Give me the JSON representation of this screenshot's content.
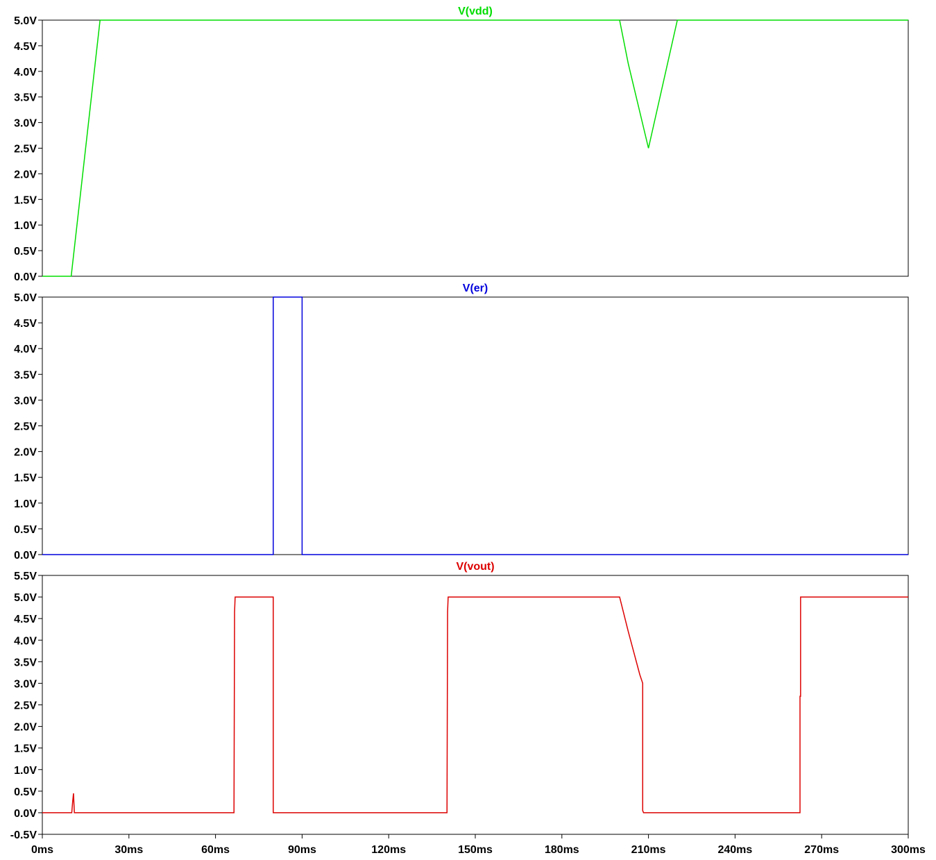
{
  "chart_data": [
    {
      "type": "line",
      "title": "V(vdd)",
      "color": "#00dd00",
      "xlabel": "",
      "ylabel": "",
      "xlim": [
        0,
        300
      ],
      "ylim": [
        0,
        5
      ],
      "x_unit": "ms",
      "y_unit": "V",
      "y_ticks": [
        "0.0V",
        "0.5V",
        "1.0V",
        "1.5V",
        "2.0V",
        "2.5V",
        "3.0V",
        "3.5V",
        "4.0V",
        "4.5V",
        "5.0V"
      ],
      "y_tick_values": [
        0,
        0.5,
        1,
        1.5,
        2,
        2.5,
        3,
        3.5,
        4,
        4.5,
        5
      ],
      "grid": false,
      "series": [
        {
          "x": [
            0,
            10,
            20,
            200,
            203,
            210,
            220,
            300
          ],
          "y": [
            0,
            0,
            5,
            5,
            4.15,
            2.5,
            5,
            5
          ]
        }
      ]
    },
    {
      "type": "line",
      "title": "V(er)",
      "color": "#0000dd",
      "xlabel": "",
      "ylabel": "",
      "xlim": [
        0,
        300
      ],
      "ylim": [
        0,
        5
      ],
      "x_unit": "ms",
      "y_unit": "V",
      "y_ticks": [
        "0.0V",
        "0.5V",
        "1.0V",
        "1.5V",
        "2.0V",
        "2.5V",
        "3.0V",
        "3.5V",
        "4.0V",
        "4.5V",
        "5.0V"
      ],
      "y_tick_values": [
        0,
        0.5,
        1,
        1.5,
        2,
        2.5,
        3,
        3.5,
        4,
        4.5,
        5
      ],
      "grid": false,
      "series": [
        {
          "x": [
            0,
            80,
            80,
            90,
            90,
            300
          ],
          "y": [
            0,
            0,
            5,
            5,
            0,
            0
          ]
        }
      ]
    },
    {
      "type": "line",
      "title": "V(vout)",
      "color": "#dd0000",
      "xlabel": "",
      "ylabel": "",
      "xlim": [
        0,
        300
      ],
      "ylim": [
        -0.5,
        5.5
      ],
      "x_unit": "ms",
      "y_unit": "V",
      "y_ticks": [
        "-0.5V",
        "0.0V",
        "0.5V",
        "1.0V",
        "1.5V",
        "2.0V",
        "2.5V",
        "3.0V",
        "3.5V",
        "4.0V",
        "4.5V",
        "5.0V",
        "5.5V"
      ],
      "y_tick_values": [
        -0.5,
        0,
        0.5,
        1,
        1.5,
        2,
        2.5,
        3,
        3.5,
        4,
        4.5,
        5,
        5.5
      ],
      "x_ticks": [
        "0ms",
        "30ms",
        "60ms",
        "90ms",
        "120ms",
        "150ms",
        "180ms",
        "210ms",
        "240ms",
        "270ms",
        "300ms"
      ],
      "x_tick_values": [
        0,
        30,
        60,
        90,
        120,
        150,
        180,
        210,
        240,
        270,
        300
      ],
      "grid": false,
      "series": [
        {
          "x": [
            0,
            10.2,
            10.5,
            10.8,
            11.1,
            66.4,
            66.6,
            66.8,
            80,
            80,
            140.2,
            140.4,
            140.6,
            200,
            203,
            205,
            207,
            208,
            208,
            208.3,
            210,
            262.5,
            262.5,
            262.7,
            262.7,
            300
          ],
          "y": [
            0,
            0,
            0.25,
            0.45,
            0,
            0,
            4.65,
            5,
            5,
            0,
            0,
            4.65,
            5,
            5,
            4.2,
            3.7,
            3.2,
            3.0,
            0.05,
            0,
            0,
            0,
            2.7,
            2.7,
            5,
            5
          ]
        }
      ]
    }
  ]
}
